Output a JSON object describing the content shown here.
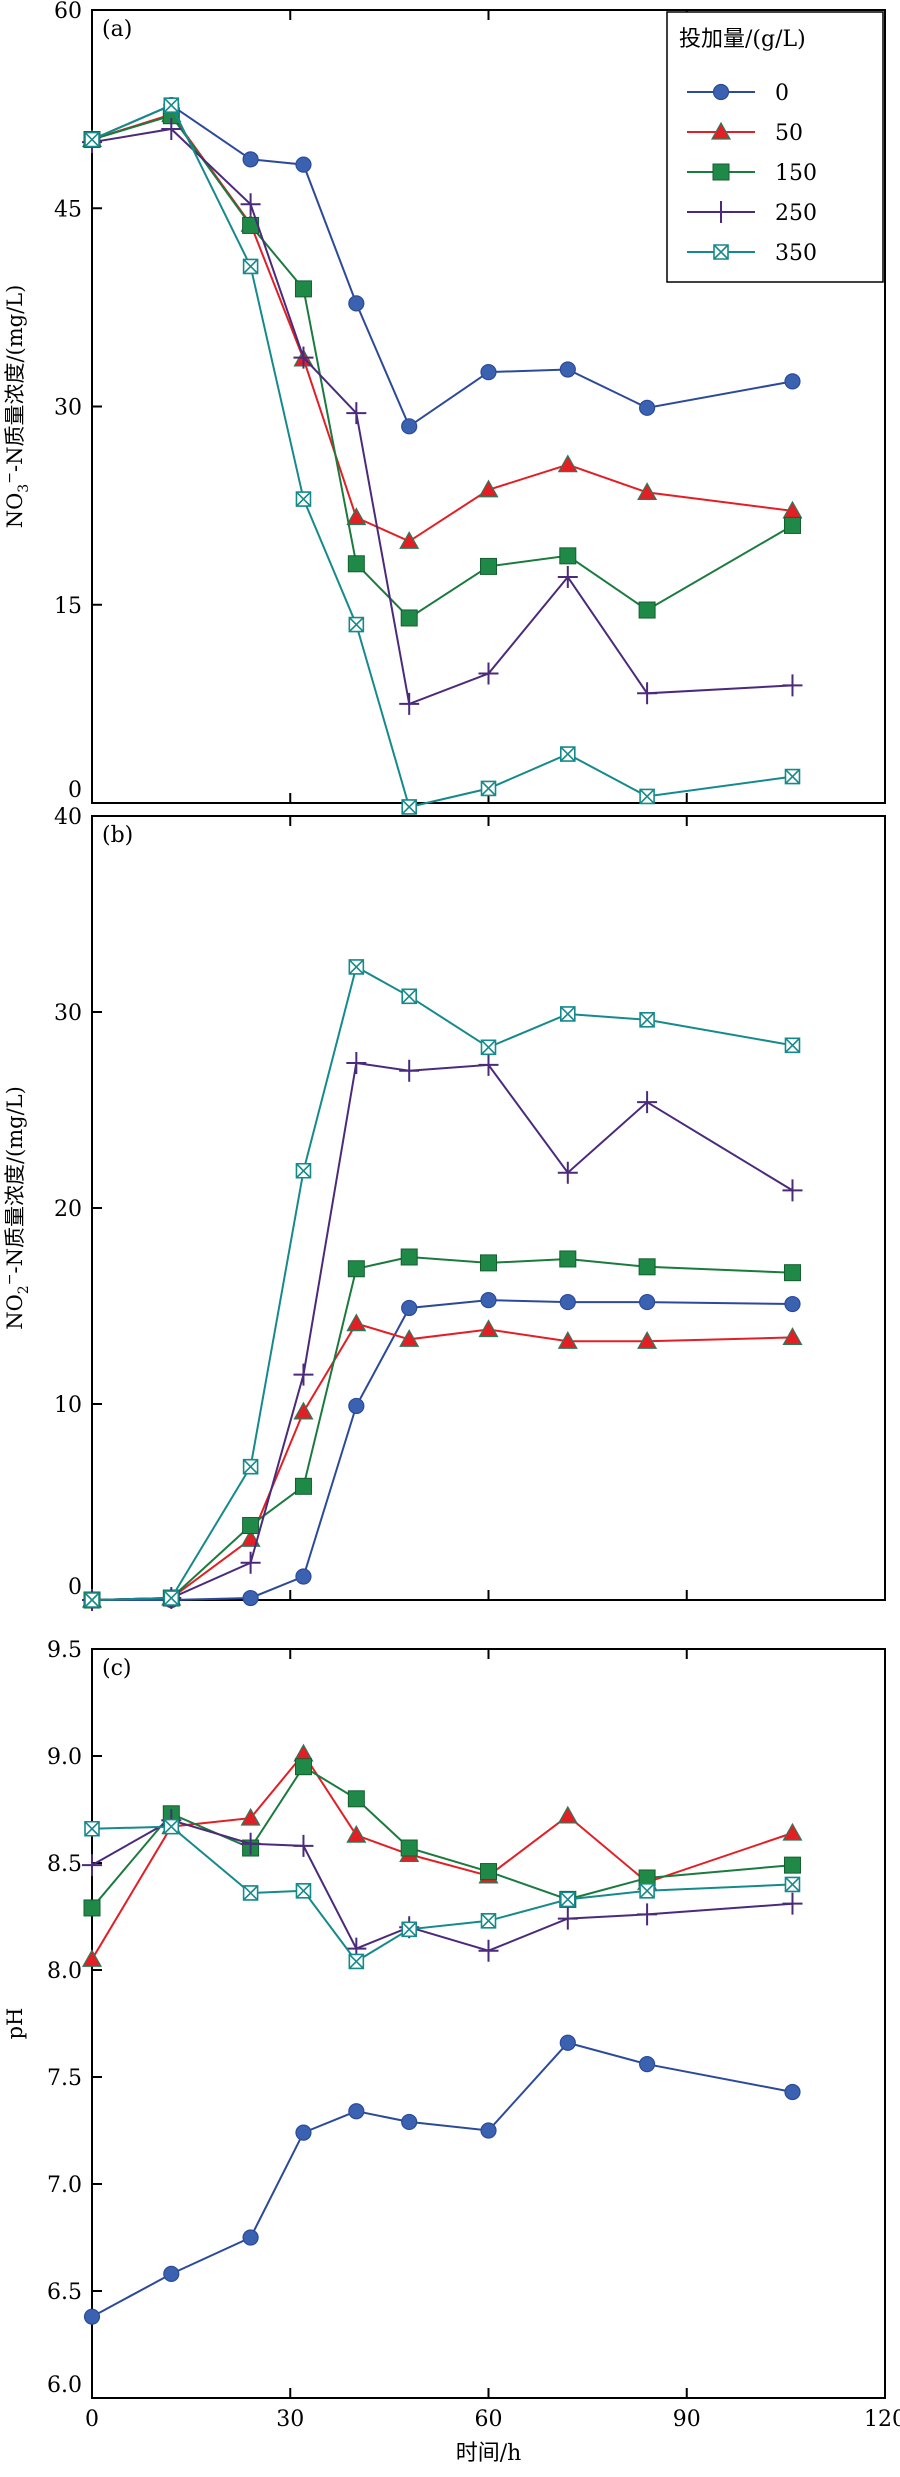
{
  "chart_data": [
    {
      "type": "line",
      "panel": "(a)",
      "ylabel_main": "NO",
      "ylabel_sub": "3",
      "ylabel_sup": "−",
      "ylabel_rest": "-N质量浓度/(mg/L)",
      "ylim": [
        0,
        60
      ],
      "yticks": [
        0,
        15,
        30,
        45,
        60
      ],
      "xlim": [
        0,
        120
      ],
      "legend": {
        "title": "投加量/(g/L)",
        "placement": "top-right",
        "entries": [
          "0",
          "50",
          "150",
          "250",
          "350"
        ]
      },
      "series": [
        {
          "name": "0",
          "x": [
            0,
            12,
            24,
            32,
            40,
            48,
            60,
            72,
            84,
            106
          ],
          "y": [
            50.2,
            52.8,
            48.7,
            48.3,
            37.8,
            28.5,
            32.6,
            32.8,
            29.9,
            31.9
          ]
        },
        {
          "name": "50",
          "x": [
            0,
            12,
            24,
            32,
            40,
            48,
            60,
            72,
            84,
            106
          ],
          "y": [
            50.2,
            52.1,
            43.8,
            33.6,
            21.6,
            19.8,
            23.7,
            25.6,
            23.5,
            22.1
          ]
        },
        {
          "name": "150",
          "x": [
            0,
            12,
            24,
            32,
            40,
            48,
            60,
            72,
            84,
            106
          ],
          "y": [
            50.2,
            52.0,
            43.7,
            38.9,
            18.1,
            14.0,
            17.9,
            18.7,
            14.6,
            21.0
          ]
        },
        {
          "name": "250",
          "x": [
            0,
            12,
            24,
            32,
            40,
            48,
            60,
            72,
            84,
            106
          ],
          "y": [
            50.0,
            51.0,
            45.3,
            33.7,
            29.5,
            7.5,
            9.8,
            17.1,
            8.3,
            8.9
          ]
        },
        {
          "name": "350",
          "x": [
            0,
            12,
            24,
            32,
            40,
            48,
            60,
            72,
            84,
            106
          ],
          "y": [
            50.2,
            52.8,
            40.6,
            23.0,
            13.5,
            -0.3,
            1.1,
            3.7,
            0.5,
            2.0
          ]
        }
      ]
    },
    {
      "type": "line",
      "panel": "(b)",
      "ylabel_main": "NO",
      "ylabel_sub": "2",
      "ylabel_sup": "−",
      "ylabel_rest": "-N质量浓度/(mg/L)",
      "ylim": [
        0,
        40
      ],
      "yticks": [
        0,
        10,
        20,
        30,
        40
      ],
      "xlim": [
        0,
        120
      ],
      "series": [
        {
          "name": "0",
          "x": [
            0,
            12,
            24,
            32,
            40,
            48,
            60,
            72,
            84,
            106
          ],
          "y": [
            0.0,
            0.0,
            0.1,
            1.2,
            9.9,
            14.9,
            15.3,
            15.2,
            15.2,
            15.1
          ]
        },
        {
          "name": "50",
          "x": [
            0,
            12,
            24,
            32,
            40,
            48,
            60,
            72,
            84,
            106
          ],
          "y": [
            0.0,
            0.1,
            3.1,
            9.6,
            14.1,
            13.3,
            13.8,
            13.2,
            13.2,
            13.4
          ]
        },
        {
          "name": "150",
          "x": [
            0,
            12,
            24,
            32,
            40,
            48,
            60,
            72,
            84,
            106
          ],
          "y": [
            0.0,
            0.1,
            3.8,
            5.8,
            16.9,
            17.5,
            17.2,
            17.4,
            17.0,
            16.7
          ]
        },
        {
          "name": "250",
          "x": [
            0,
            12,
            24,
            32,
            40,
            48,
            60,
            72,
            84,
            106
          ],
          "y": [
            0.0,
            0.1,
            1.9,
            11.5,
            27.4,
            27.0,
            27.3,
            21.8,
            25.4,
            20.9
          ]
        },
        {
          "name": "350",
          "x": [
            0,
            12,
            24,
            32,
            40,
            48,
            60,
            72,
            84,
            106
          ],
          "y": [
            0.0,
            0.1,
            6.8,
            21.9,
            32.3,
            30.8,
            28.2,
            29.9,
            29.6,
            28.3
          ]
        }
      ]
    },
    {
      "type": "line",
      "panel": "(c)",
      "ylabel_main": "pH",
      "ylim": [
        6.0,
        9.5
      ],
      "yticks": [
        "6.0",
        "6.5",
        "7.0",
        "7.5",
        "8.0",
        "8.5",
        "9.0",
        "9.5"
      ],
      "xlim": [
        0,
        120
      ],
      "xticks": [
        0,
        30,
        60,
        90,
        120
      ],
      "xlabel": "时间/h",
      "series": [
        {
          "name": "0",
          "x": [
            0,
            12,
            24,
            32,
            40,
            48,
            60,
            72,
            84,
            106
          ],
          "y": [
            6.38,
            6.58,
            6.75,
            7.24,
            7.34,
            7.29,
            7.25,
            7.66,
            7.56,
            7.43
          ]
        },
        {
          "name": "50",
          "x": [
            0,
            12,
            24,
            32,
            40,
            48,
            60,
            72,
            84,
            106
          ],
          "y": [
            8.05,
            8.67,
            8.71,
            9.01,
            8.63,
            8.54,
            8.44,
            8.72,
            8.41,
            8.64
          ]
        },
        {
          "name": "150",
          "x": [
            0,
            12,
            24,
            32,
            40,
            48,
            60,
            72,
            84,
            106
          ],
          "y": [
            8.29,
            8.73,
            8.57,
            8.95,
            8.8,
            8.57,
            8.46,
            8.33,
            8.43,
            8.49
          ]
        },
        {
          "name": "250",
          "x": [
            0,
            12,
            24,
            32,
            40,
            48,
            60,
            72,
            84,
            106
          ],
          "y": [
            8.49,
            8.7,
            8.59,
            8.58,
            8.1,
            8.2,
            8.09,
            8.24,
            8.26,
            8.31
          ]
        },
        {
          "name": "350",
          "x": [
            0,
            12,
            24,
            32,
            40,
            48,
            60,
            72,
            84,
            106
          ],
          "y": [
            8.66,
            8.67,
            8.36,
            8.37,
            8.04,
            8.19,
            8.23,
            8.33,
            8.37,
            8.4
          ]
        }
      ]
    }
  ],
  "series_styles": [
    {
      "name": "0",
      "color": "#2c4a9a",
      "marker": "circle",
      "fill": "#3a62b0"
    },
    {
      "name": "50",
      "color": "#e31e24",
      "marker": "triangle",
      "fill": "#e31e24"
    },
    {
      "name": "150",
      "color": "#1b7a3e",
      "marker": "square",
      "fill": "#1f8a48"
    },
    {
      "name": "250",
      "color": "#4b2a7b",
      "marker": "plus",
      "fill": "#4b2a7b"
    },
    {
      "name": "350",
      "color": "#168a8a",
      "marker": "boxed-x",
      "fill": "#ffffff"
    }
  ]
}
